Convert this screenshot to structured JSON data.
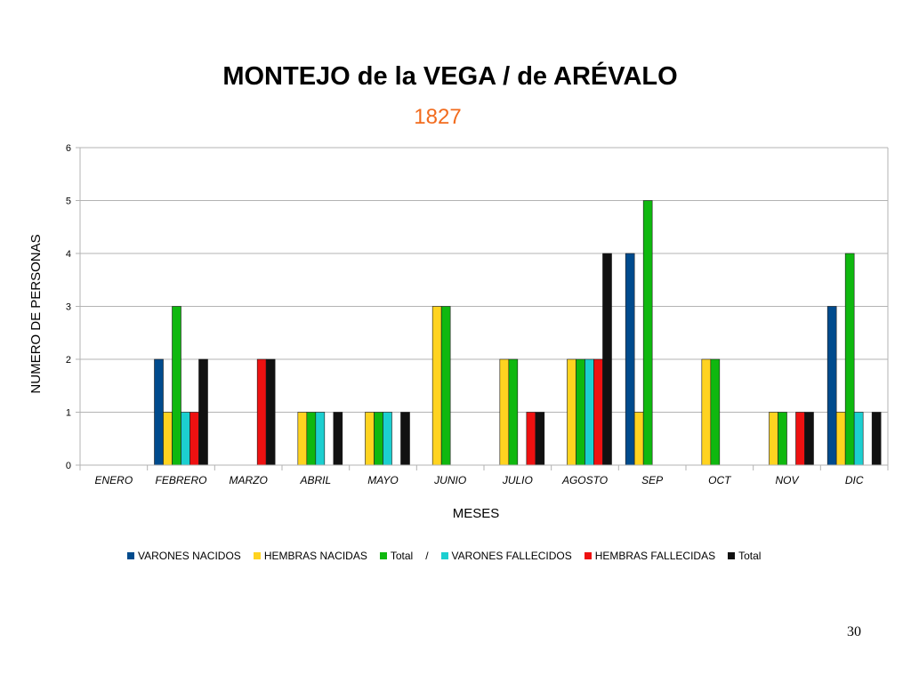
{
  "slide": {
    "page_number": "30"
  },
  "chart_data": {
    "type": "bar",
    "title": "MONTEJO de la VEGA / de ARÉVALO",
    "subtitle": "1827",
    "xlabel": "MESES",
    "ylabel": "NUMERO DE PERSONAS",
    "ylim": [
      0,
      6
    ],
    "yticks": [
      "0",
      "1",
      "2",
      "3",
      "4",
      "5",
      "6"
    ],
    "grid": true,
    "legend_position": "bottom",
    "legend_separator": "/",
    "categories": [
      "ENERO",
      "FEBRERO",
      "MARZO",
      "ABRIL",
      "MAYO",
      "JUNIO",
      "JULIO",
      "AGOSTO",
      "SEP",
      "OCT",
      "NOV",
      "DIC"
    ],
    "series": [
      {
        "name": "VARONES NACIDOS",
        "color": "#004b8d",
        "values": [
          0,
          2,
          0,
          0,
          0,
          0,
          0,
          0,
          4,
          0,
          0,
          3
        ]
      },
      {
        "name": "HEMBRAS NACIDAS",
        "color": "#ffd320",
        "values": [
          0,
          1,
          0,
          1,
          1,
          3,
          2,
          2,
          1,
          2,
          1,
          1
        ]
      },
      {
        "name": "Total",
        "color": "#0fb80f",
        "values": [
          0,
          3,
          0,
          1,
          1,
          3,
          2,
          2,
          5,
          2,
          1,
          4
        ]
      },
      {
        "name": "VARONES FALLECIDOS",
        "color": "#1ccfd0",
        "values": [
          0,
          1,
          0,
          1,
          1,
          0,
          0,
          2,
          0,
          0,
          0,
          1
        ]
      },
      {
        "name": "HEMBRAS FALLECIDAS",
        "color": "#ee1111",
        "values": [
          0,
          1,
          2,
          0,
          0,
          0,
          1,
          2,
          0,
          0,
          1,
          0
        ]
      },
      {
        "name": "Total",
        "color": "#111111",
        "values": [
          0,
          2,
          2,
          1,
          1,
          0,
          1,
          4,
          0,
          0,
          1,
          1
        ]
      }
    ]
  }
}
